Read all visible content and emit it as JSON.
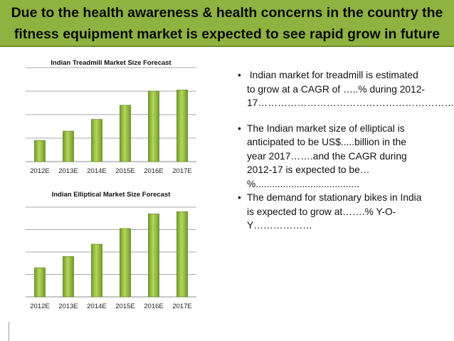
{
  "banner": {
    "line1": "Due to the health awareness & health concerns in the country the",
    "line2": "fitness equipment market is expected to see rapid grow in future"
  },
  "colors": {
    "banner_bg": "#8fb241",
    "bar_light": "#b6d75a",
    "bar_dark": "#6f9a2a",
    "grid": "#8c8c8c"
  },
  "chart_data": [
    {
      "type": "bar",
      "title": "Indian Treadmill Market Size Forecast",
      "categories": [
        "2012E",
        "2013E",
        "2014E",
        "2015E",
        "2016E",
        "2017E"
      ],
      "values": [
        0.9,
        1.3,
        1.8,
        2.4,
        3.0,
        3.05
      ],
      "ylim": [
        0,
        4
      ],
      "grid": true,
      "xlabel": "",
      "ylabel": ""
    },
    {
      "type": "bar",
      "title": "Indian Elliptical Market Size Forecast",
      "categories": [
        "2012E",
        "2013E",
        "2014E",
        "2015E",
        "2016E",
        "2017E"
      ],
      "values": [
        1.3,
        1.8,
        2.35,
        3.05,
        3.7,
        3.8
      ],
      "ylim": [
        0,
        4
      ],
      "grid": true,
      "xlabel": "",
      "ylabel": ""
    }
  ],
  "bullets": [
    {
      "symbol": "•",
      "lines": [
        " Indian market for treadmill is estimated",
        "to grow at a CAGR of …..% during 2012-",
        "17……………………………………………………"
      ]
    },
    {
      "symbol": "•",
      "lines": [
        "The Indian market size of elliptical is",
        "anticipated to be US$.....billion in the",
        "year 2017…….and the CAGR during",
        "2012-17 is expected to be…",
        "%......................................"
      ]
    },
    {
      "symbol": "•",
      "lines": [
        "The demand for stationary bikes in India",
        "is expected to grow at…….% Y-O-",
        "Y………………"
      ]
    }
  ]
}
